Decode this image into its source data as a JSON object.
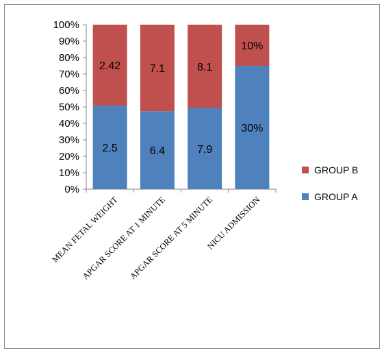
{
  "chart_data": {
    "type": "bar",
    "stacked": "percent",
    "categories": [
      "MEAN FETAL WEIGHT",
      "APGAR SCORE AT 1 MINUTE",
      "APGAR SCORE AT 5 MINUTE",
      "NICU ADMISSION"
    ],
    "series": [
      {
        "name": "GROUP A",
        "values": [
          2.5,
          6.4,
          7.9,
          30
        ],
        "labels": [
          "2.5",
          "6.4",
          "7.9",
          "30%"
        ],
        "color": "#4f81bd"
      },
      {
        "name": "GROUP B",
        "values": [
          2.42,
          7.1,
          8.1,
          10
        ],
        "labels": [
          "2.42",
          "7.1",
          "8.1",
          "10%"
        ],
        "color": "#c0504d"
      }
    ],
    "yticks": [
      "0%",
      "10%",
      "20%",
      "30%",
      "40%",
      "50%",
      "60%",
      "70%",
      "80%",
      "90%",
      "100%"
    ],
    "ylim": [
      0,
      100
    ],
    "grid": false,
    "legend": "right"
  }
}
